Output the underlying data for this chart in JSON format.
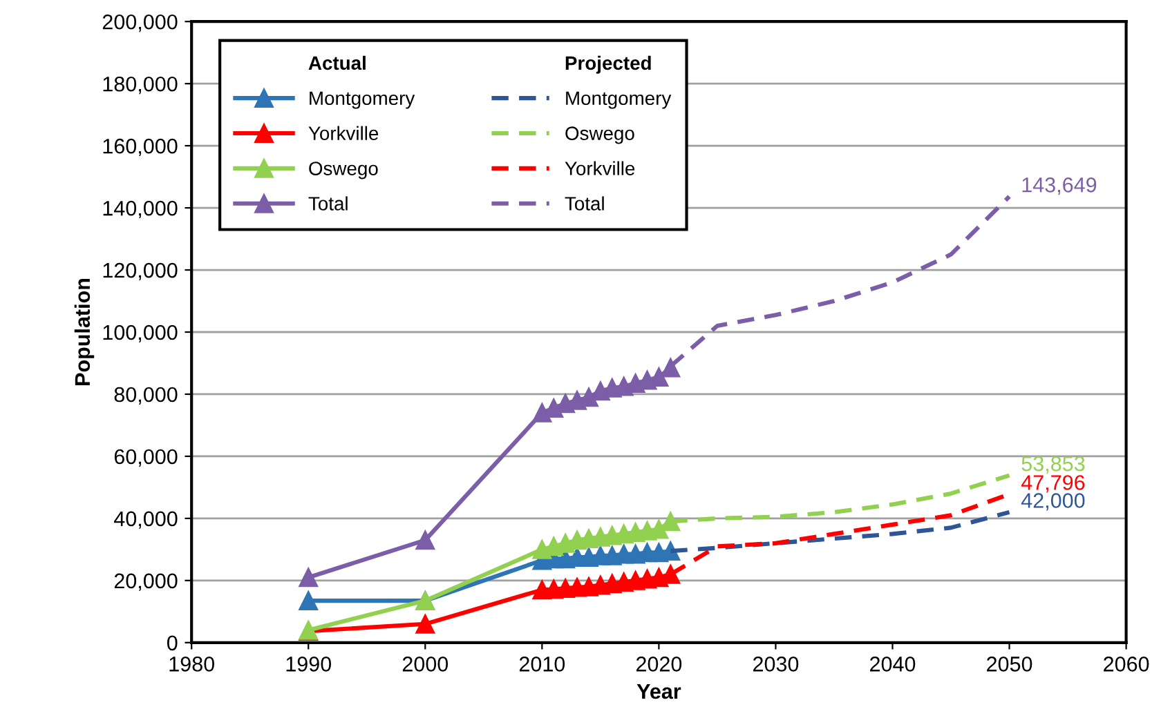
{
  "chart_data": {
    "type": "line",
    "xlabel": "Year",
    "ylabel": "Population",
    "xlim": [
      1980,
      2060
    ],
    "xticks": [
      1980,
      1990,
      2000,
      2010,
      2020,
      2030,
      2040,
      2050,
      2060
    ],
    "ylim": [
      0,
      200000
    ],
    "yticks": [
      {
        "value": 0,
        "label": "0"
      },
      {
        "value": 20000,
        "label": "20,000"
      },
      {
        "value": 40000,
        "label": "40,000"
      },
      {
        "value": 60000,
        "label": "60,000"
      },
      {
        "value": 80000,
        "label": "80,000"
      },
      {
        "value": 100000,
        "label": "100,000"
      },
      {
        "value": 120000,
        "label": "120,000"
      },
      {
        "value": 140000,
        "label": "140,000"
      },
      {
        "value": 160000,
        "label": "160,000"
      },
      {
        "value": 180000,
        "label": "180,000"
      },
      {
        "value": 200000,
        "label": "200,000"
      }
    ],
    "grid": "y",
    "legend": "top left",
    "legend_title": [
      "Actual",
      "Projected"
    ],
    "series": [
      {
        "name": "Montgomery",
        "color": "#2e75b6",
        "marker": "triangle",
        "line_style": "solid",
        "x": [
          1990,
          2000,
          2010,
          2011,
          2012,
          2013,
          2014,
          2015,
          2016,
          2017,
          2018,
          2019,
          2020,
          2021
        ],
        "values": [
          13500,
          13500,
          26500,
          27000,
          27000,
          27500,
          27500,
          28000,
          28000,
          28500,
          28500,
          29000,
          29000,
          29500
        ]
      },
      {
        "name": "Yorkville",
        "color": "#ff0000",
        "marker": "triangle",
        "line_style": "solid",
        "x": [
          1990,
          2000,
          2010,
          2011,
          2012,
          2013,
          2014,
          2015,
          2016,
          2017,
          2018,
          2019,
          2020,
          2021
        ],
        "values": [
          3700,
          6000,
          17000,
          17200,
          17500,
          17800,
          18000,
          18500,
          19000,
          19500,
          20000,
          20500,
          21000,
          22000
        ]
      },
      {
        "name": "Oswego",
        "color": "#92d050",
        "marker": "triangle",
        "line_style": "solid",
        "x": [
          1990,
          2000,
          2010,
          2011,
          2012,
          2013,
          2014,
          2015,
          2016,
          2017,
          2018,
          2019,
          2020,
          2021
        ],
        "values": [
          4000,
          13500,
          30000,
          31000,
          32000,
          33000,
          33500,
          34000,
          34500,
          35000,
          35500,
          36000,
          36500,
          39000
        ]
      },
      {
        "name": "Total",
        "color": "#7b5ea7",
        "marker": "triangle",
        "line_style": "solid",
        "x": [
          1990,
          2000,
          2010,
          2011,
          2012,
          2013,
          2014,
          2015,
          2016,
          2017,
          2018,
          2019,
          2020,
          2021
        ],
        "values": [
          21000,
          33000,
          74000,
          75500,
          77000,
          78000,
          79000,
          81000,
          82000,
          82500,
          83500,
          84500,
          85500,
          88500
        ]
      },
      {
        "name": "Montgomery",
        "color": "#2f5597",
        "marker": "none",
        "line_style": "dashed",
        "x": [
          2021,
          2025,
          2030,
          2035,
          2040,
          2045,
          2050
        ],
        "values": [
          29500,
          30500,
          32000,
          33500,
          35000,
          37000,
          42000
        ],
        "value_labels": [
          null,
          null,
          null,
          null,
          null,
          null,
          "42,000"
        ]
      },
      {
        "name": "Oswego",
        "color": "#92d050",
        "marker": "none",
        "line_style": "dashed",
        "x": [
          2021,
          2025,
          2030,
          2035,
          2040,
          2045,
          2050
        ],
        "values": [
          39000,
          40000,
          40500,
          42000,
          44500,
          48000,
          53853
        ],
        "value_labels": [
          null,
          null,
          null,
          null,
          null,
          null,
          "53,853"
        ]
      },
      {
        "name": "Yorkville",
        "color": "#ff0000",
        "marker": "none",
        "line_style": "dashed",
        "x": [
          2021,
          2025,
          2030,
          2035,
          2040,
          2045,
          2050
        ],
        "values": [
          22000,
          31000,
          32000,
          35000,
          38000,
          41000,
          47796
        ],
        "value_labels": [
          null,
          null,
          null,
          null,
          null,
          null,
          "47,796"
        ]
      },
      {
        "name": "Total",
        "color": "#7b5ea7",
        "marker": "none",
        "line_style": "dashed",
        "x": [
          2021,
          2025,
          2030,
          2035,
          2040,
          2045,
          2050
        ],
        "values": [
          89000,
          102000,
          105500,
          110000,
          116000,
          125000,
          143649
        ],
        "value_labels": [
          null,
          null,
          null,
          null,
          null,
          null,
          "143,649"
        ]
      }
    ]
  }
}
